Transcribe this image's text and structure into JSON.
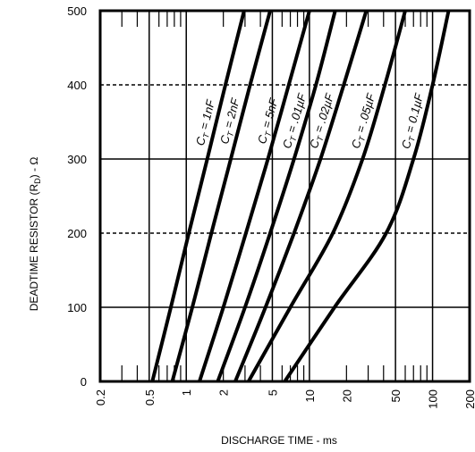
{
  "chart_data": {
    "type": "line",
    "title": "",
    "xlabel": "DISCHARGE TIME - ms",
    "ylabel_main": "DEADTIME RESISTOR (R",
    "ylabel_sub": "D",
    "ylabel_tail": ") - Ω",
    "xscale": "log",
    "xlim": [
      0.2,
      200
    ],
    "ylim": [
      0,
      500
    ],
    "x_ticks": [
      {
        "value": 0.2,
        "label": "0.2"
      },
      {
        "value": 0.5,
        "label": "0.5"
      },
      {
        "value": 1,
        "label": "1"
      },
      {
        "value": 2,
        "label": "2"
      },
      {
        "value": 5,
        "label": "5"
      },
      {
        "value": 10,
        "label": "10"
      },
      {
        "value": 20,
        "label": "20"
      },
      {
        "value": 50,
        "label": "50"
      },
      {
        "value": 100,
        "label": "100"
      },
      {
        "value": 200,
        "label": "200"
      }
    ],
    "y_ticks": [
      {
        "value": 0,
        "label": "0"
      },
      {
        "value": 100,
        "label": "100"
      },
      {
        "value": 200,
        "label": "200"
      },
      {
        "value": 300,
        "label": "300"
      },
      {
        "value": 400,
        "label": "400"
      },
      {
        "value": 500,
        "label": "500"
      }
    ],
    "grid_solid_x": [
      0.5,
      1,
      5,
      10,
      50,
      100
    ],
    "grid_solid_y": [
      100,
      300
    ],
    "grid_dashed_y": [
      200,
      400
    ],
    "series": [
      {
        "name": "C_T = 1nF",
        "label_main": "C",
        "label_sub": "T",
        "label_tail": " = 1nF",
        "points": [
          [
            0.53,
            0
          ],
          [
            0.75,
            100
          ],
          [
            1.05,
            200
          ],
          [
            1.48,
            300
          ],
          [
            2.08,
            400
          ],
          [
            2.95,
            500
          ]
        ]
      },
      {
        "name": "C_T = 2nF",
        "label_main": "C",
        "label_sub": "T",
        "label_tail": " = 2nF",
        "points": [
          [
            0.77,
            0
          ],
          [
            1.12,
            100
          ],
          [
            1.6,
            200
          ],
          [
            2.3,
            300
          ],
          [
            3.3,
            400
          ],
          [
            4.8,
            500
          ]
        ]
      },
      {
        "name": "C_T = 5nF",
        "label_main": "C",
        "label_sub": "T",
        "label_tail": " = 5nF",
        "points": [
          [
            1.28,
            0
          ],
          [
            2.0,
            100
          ],
          [
            3.05,
            200
          ],
          [
            4.6,
            300
          ],
          [
            6.8,
            400
          ],
          [
            10.0,
            500
          ]
        ]
      },
      {
        "name": "C_T = .01µF",
        "label_main": "C",
        "label_sub": "T",
        "label_tail": " = .01µF",
        "points": [
          [
            1.8,
            0
          ],
          [
            3.0,
            100
          ],
          [
            4.8,
            200
          ],
          [
            7.5,
            300
          ],
          [
            11.3,
            400
          ],
          [
            16.2,
            500
          ]
        ]
      },
      {
        "name": "C_T = .02µF",
        "label_main": "C",
        "label_sub": "T",
        "label_tail": " = .02µF",
        "points": [
          [
            2.5,
            0
          ],
          [
            4.4,
            100
          ],
          [
            7.5,
            200
          ],
          [
            12.3,
            300
          ],
          [
            19.0,
            400
          ],
          [
            29.0,
            500
          ]
        ]
      },
      {
        "name": "C_T = .05µF",
        "label_main": "C",
        "label_sub": "T",
        "label_tail": " = .05µF",
        "points": [
          [
            3.2,
            0
          ],
          [
            7.0,
            100
          ],
          [
            15.5,
            200
          ],
          [
            27.0,
            300
          ],
          [
            41.0,
            400
          ],
          [
            60.0,
            500
          ]
        ]
      },
      {
        "name": "C_T = 0.1µF",
        "label_main": "C",
        "label_sub": "T",
        "label_tail": " = 0.1µF",
        "points": [
          [
            6.3,
            0
          ],
          [
            16.0,
            100
          ],
          [
            42.0,
            200
          ],
          [
            70.0,
            300
          ],
          [
            100.0,
            400
          ],
          [
            135.0,
            500
          ]
        ]
      }
    ]
  }
}
